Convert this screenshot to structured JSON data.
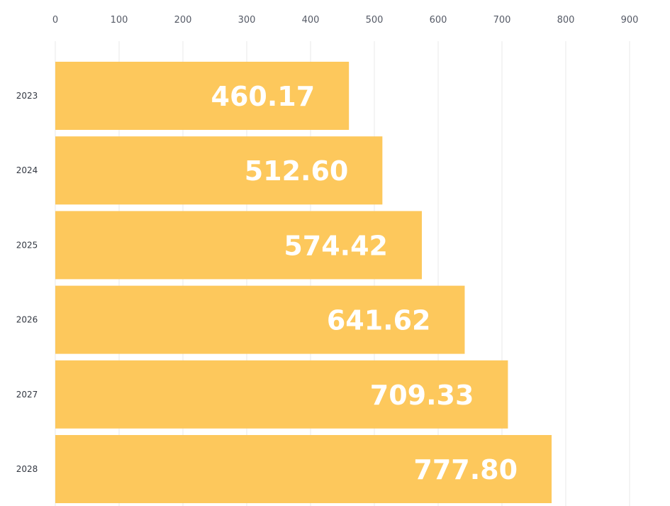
{
  "chart_data": {
    "type": "bar",
    "orientation": "horizontal",
    "categories": [
      "2023",
      "2024",
      "2025",
      "2026",
      "2027",
      "2028"
    ],
    "values": [
      460.17,
      512.6,
      574.42,
      641.62,
      709.33,
      777.8
    ],
    "data_labels": [
      "460.17",
      "512.60",
      "574.42",
      "641.62",
      "709.33",
      "777.80"
    ],
    "x_ticks": [
      "0",
      "100",
      "200",
      "300",
      "400",
      "500",
      "600",
      "700",
      "800",
      "900"
    ],
    "xlim": [
      0,
      900
    ],
    "x_axis_position": "top",
    "grid": true,
    "legend": "none",
    "bar_color": "#fdc85c",
    "grid_color": "#e9e9e9",
    "label_color": "#ffffff"
  }
}
